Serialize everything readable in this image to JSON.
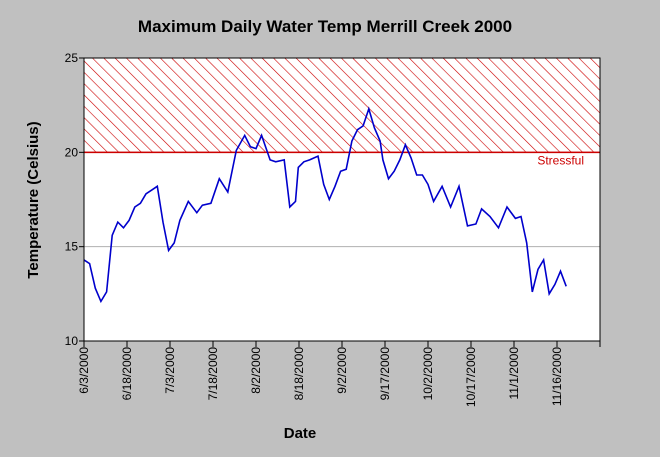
{
  "chart_data": {
    "type": "line",
    "title": "Maximum Daily Water Temp Merrill Creek 2000",
    "xlabel": "Date",
    "ylabel": "Temperature (Celsius)",
    "ylim": [
      10,
      25
    ],
    "yticks": [
      "10",
      "15",
      "20",
      "25"
    ],
    "xlim": [
      "2000-06-03",
      "2000-12-03"
    ],
    "xticks": [
      "6/3/2000",
      "6/18/2000",
      "7/3/2000",
      "7/18/2000",
      "8/2/2000",
      "8/18/2000",
      "9/2/2000",
      "9/17/2000",
      "10/2/2000",
      "10/17/2000",
      "11/1/2000",
      "11/16/2000"
    ],
    "grid": true,
    "threshold": {
      "value": 20,
      "label": "Stressful",
      "upper": 25,
      "color": "#cc0000"
    },
    "series": [
      {
        "color": "#0000cc",
        "x": [
          "2000-06-03",
          "2000-06-05",
          "2000-06-07",
          "2000-06-09",
          "2000-06-11",
          "2000-06-13",
          "2000-06-15",
          "2000-06-17",
          "2000-06-19",
          "2000-06-21",
          "2000-06-23",
          "2000-06-25",
          "2000-06-27",
          "2000-06-29",
          "2000-07-01",
          "2000-07-03",
          "2000-07-05",
          "2000-07-07",
          "2000-07-10",
          "2000-07-13",
          "2000-07-15",
          "2000-07-18",
          "2000-07-21",
          "2000-07-24",
          "2000-07-27",
          "2000-07-30",
          "2000-08-01",
          "2000-08-03",
          "2000-08-05",
          "2000-08-08",
          "2000-08-10",
          "2000-08-13",
          "2000-08-15",
          "2000-08-17",
          "2000-08-18",
          "2000-08-20",
          "2000-08-22",
          "2000-08-25",
          "2000-08-27",
          "2000-08-29",
          "2000-08-31",
          "2000-09-02",
          "2000-09-04",
          "2000-09-06",
          "2000-09-08",
          "2000-09-10",
          "2000-09-12",
          "2000-09-14",
          "2000-09-16",
          "2000-09-17",
          "2000-09-19",
          "2000-09-21",
          "2000-09-23",
          "2000-09-25",
          "2000-09-27",
          "2000-09-29",
          "2000-10-01",
          "2000-10-03",
          "2000-10-05",
          "2000-10-08",
          "2000-10-11",
          "2000-10-14",
          "2000-10-17",
          "2000-10-20",
          "2000-10-22",
          "2000-10-25",
          "2000-10-28",
          "2000-10-31",
          "2000-11-03",
          "2000-11-05",
          "2000-11-07",
          "2000-11-09",
          "2000-11-11",
          "2000-11-13",
          "2000-11-15",
          "2000-11-17",
          "2000-11-19",
          "2000-11-21"
        ],
        "values": [
          14.3,
          14.1,
          12.8,
          12.1,
          12.6,
          15.6,
          16.3,
          16.0,
          16.4,
          17.1,
          17.3,
          17.8,
          18.0,
          18.2,
          16.3,
          14.8,
          15.2,
          16.4,
          17.4,
          16.8,
          17.2,
          17.3,
          18.6,
          17.9,
          20.1,
          20.9,
          20.3,
          20.2,
          20.9,
          19.6,
          19.5,
          19.6,
          17.1,
          17.4,
          19.2,
          19.5,
          19.6,
          19.8,
          18.3,
          17.5,
          18.2,
          19.0,
          19.1,
          20.6,
          21.2,
          21.4,
          22.3,
          21.3,
          20.6,
          19.6,
          18.6,
          19.0,
          19.6,
          20.4,
          19.7,
          18.8,
          18.8,
          18.3,
          17.4,
          18.2,
          17.1,
          18.2,
          16.1,
          16.2,
          17.0,
          16.6,
          16.0,
          17.1,
          16.5,
          16.6,
          15.2,
          12.6,
          13.8,
          14.3,
          12.5,
          13.0,
          13.7,
          12.9
        ]
      }
    ]
  }
}
